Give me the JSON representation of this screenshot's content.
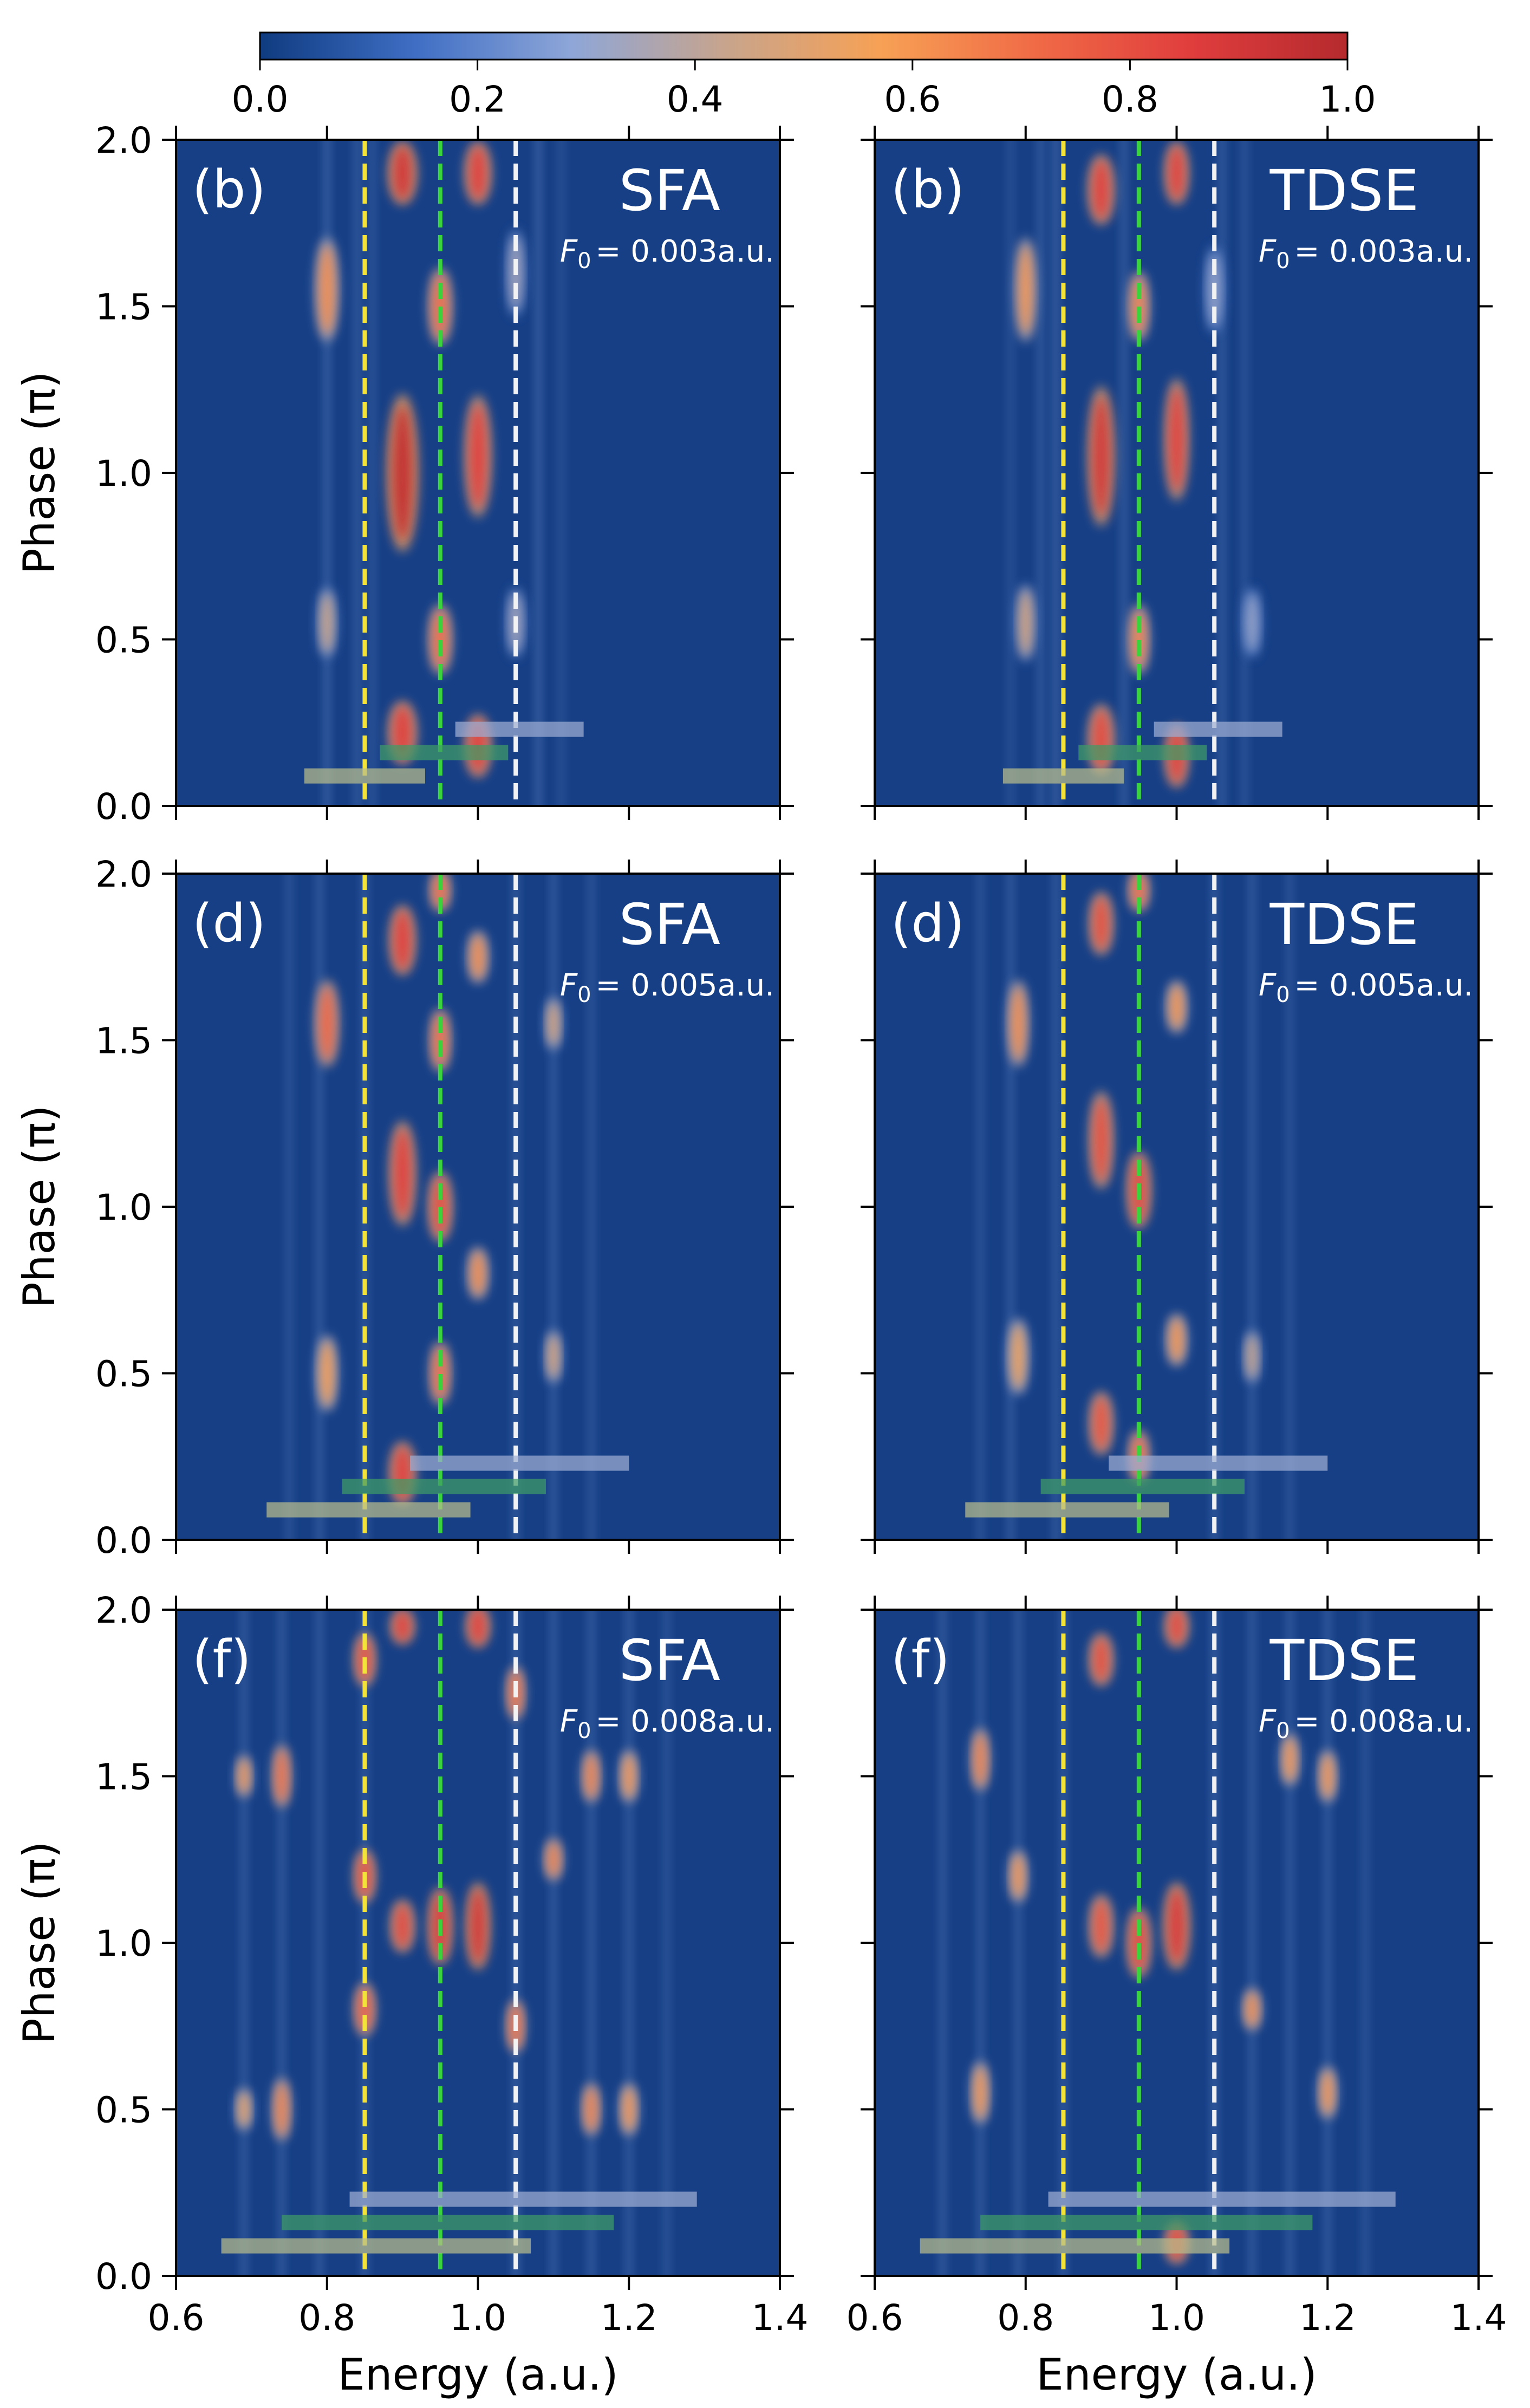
{
  "chart_data": {
    "type": "heatmap",
    "colorbar": {
      "ticks": [
        "0.0",
        "0.2",
        "0.4",
        "0.6",
        "0.8",
        "1.0"
      ],
      "range": [
        0.0,
        1.0
      ],
      "stops": [
        "#0f3b80",
        "#3f6ec4",
        "#8ea6d8",
        "#c8a48c",
        "#f7a155",
        "#f06a46",
        "#e03d3d",
        "#b52a2e"
      ]
    },
    "x_axis": {
      "label": "Energy (a.u.)",
      "range": [
        0.6,
        1.4
      ],
      "ticks": [
        "0.6",
        "0.8",
        "1.0",
        "1.2",
        "1.4"
      ]
    },
    "y_axis": {
      "label": "Phase (π)",
      "range": [
        0.0,
        2.0
      ],
      "ticks": [
        "0.0",
        "0.5",
        "1.0",
        "1.5",
        "2.0"
      ]
    },
    "reference_lines": [
      {
        "energy": 0.85,
        "color": "#f2e23a"
      },
      {
        "energy": 0.95,
        "color": "#39d43b"
      },
      {
        "energy": 1.05,
        "color": "#f2f2f2"
      }
    ],
    "panels": [
      {
        "tag": "(b)",
        "method": "SFA",
        "field_symbol": "F",
        "field_sub": "0",
        "field_value": "= 0.003a.u.",
        "background": "#163f86",
        "streaks": [
          {
            "e": 0.8,
            "i": 0.35
          },
          {
            "e": 0.84,
            "i": 0.3
          },
          {
            "e": 0.86,
            "i": 0.25
          },
          {
            "e": 1.08,
            "i": 0.35
          },
          {
            "e": 1.11,
            "i": 0.2
          }
        ],
        "blobs": [
          {
            "e": 0.8,
            "p": 1.55,
            "w": 0.01,
            "h": 0.3,
            "v": 0.62
          },
          {
            "e": 0.8,
            "p": 0.55,
            "w": 0.008,
            "h": 0.2,
            "v": 0.45
          },
          {
            "e": 0.9,
            "p": 1.0,
            "w": 0.013,
            "h": 0.45,
            "v": 0.95
          },
          {
            "e": 0.9,
            "p": 1.9,
            "w": 0.012,
            "h": 0.18,
            "v": 0.9
          },
          {
            "e": 0.9,
            "p": 0.22,
            "w": 0.012,
            "h": 0.18,
            "v": 0.85
          },
          {
            "e": 0.95,
            "p": 1.5,
            "w": 0.01,
            "h": 0.22,
            "v": 0.7
          },
          {
            "e": 0.95,
            "p": 0.5,
            "w": 0.01,
            "h": 0.2,
            "v": 0.7
          },
          {
            "e": 1.0,
            "p": 1.9,
            "w": 0.011,
            "h": 0.18,
            "v": 0.85
          },
          {
            "e": 1.0,
            "p": 1.05,
            "w": 0.011,
            "h": 0.35,
            "v": 0.85
          },
          {
            "e": 1.0,
            "p": 0.18,
            "w": 0.011,
            "h": 0.18,
            "v": 0.85
          },
          {
            "e": 1.05,
            "p": 1.6,
            "w": 0.008,
            "h": 0.25,
            "v": 0.35
          },
          {
            "e": 1.05,
            "p": 0.55,
            "w": 0.008,
            "h": 0.2,
            "v": 0.35
          }
        ],
        "bars": [
          {
            "e0": 0.77,
            "e1": 0.93,
            "p": 0.09,
            "color": "#b7bd8c"
          },
          {
            "e0": 0.87,
            "e1": 1.04,
            "p": 0.16,
            "color": "#3f9b66"
          },
          {
            "e0": 0.97,
            "e1": 1.14,
            "p": 0.23,
            "color": "#9eadd2"
          }
        ]
      },
      {
        "tag": "(b)",
        "method": "TDSE",
        "field_symbol": "F",
        "field_sub": "0",
        "field_value": "= 0.003a.u.",
        "background": "#163f86",
        "streaks": [
          {
            "e": 0.78,
            "i": 0.2
          },
          {
            "e": 0.82,
            "i": 0.3
          },
          {
            "e": 0.84,
            "i": 0.35
          },
          {
            "e": 0.93,
            "i": 0.3
          },
          {
            "e": 1.06,
            "i": 0.3
          },
          {
            "e": 1.09,
            "i": 0.25
          }
        ],
        "blobs": [
          {
            "e": 0.8,
            "p": 1.55,
            "w": 0.009,
            "h": 0.3,
            "v": 0.6
          },
          {
            "e": 0.8,
            "p": 0.55,
            "w": 0.008,
            "h": 0.22,
            "v": 0.48
          },
          {
            "e": 0.9,
            "p": 1.05,
            "w": 0.011,
            "h": 0.4,
            "v": 0.9
          },
          {
            "e": 0.9,
            "p": 1.85,
            "w": 0.011,
            "h": 0.2,
            "v": 0.85
          },
          {
            "e": 0.9,
            "p": 0.2,
            "w": 0.011,
            "h": 0.2,
            "v": 0.82
          },
          {
            "e": 0.95,
            "p": 1.5,
            "w": 0.009,
            "h": 0.2,
            "v": 0.65
          },
          {
            "e": 0.95,
            "p": 0.5,
            "w": 0.009,
            "h": 0.2,
            "v": 0.65
          },
          {
            "e": 1.0,
            "p": 1.9,
            "w": 0.01,
            "h": 0.18,
            "v": 0.85
          },
          {
            "e": 1.0,
            "p": 1.1,
            "w": 0.01,
            "h": 0.35,
            "v": 0.85
          },
          {
            "e": 1.0,
            "p": 0.15,
            "w": 0.01,
            "h": 0.18,
            "v": 0.85
          },
          {
            "e": 1.05,
            "p": 1.55,
            "w": 0.008,
            "h": 0.25,
            "v": 0.32
          },
          {
            "e": 1.1,
            "p": 0.55,
            "w": 0.008,
            "h": 0.2,
            "v": 0.32
          }
        ],
        "bars": [
          {
            "e0": 0.77,
            "e1": 0.93,
            "p": 0.09,
            "color": "#b7bd8c"
          },
          {
            "e0": 0.87,
            "e1": 1.04,
            "p": 0.16,
            "color": "#3f9b66"
          },
          {
            "e0": 0.97,
            "e1": 1.14,
            "p": 0.23,
            "color": "#9eadd2"
          }
        ]
      },
      {
        "tag": "(d)",
        "method": "SFA",
        "field_symbol": "F",
        "field_sub": "0",
        "field_value": "= 0.005a.u.",
        "background": "#163f86",
        "streaks": [
          {
            "e": 0.75,
            "i": 0.25
          },
          {
            "e": 0.79,
            "i": 0.3
          },
          {
            "e": 0.85,
            "i": 0.3
          },
          {
            "e": 1.05,
            "i": 0.3
          },
          {
            "e": 1.1,
            "i": 0.3
          },
          {
            "e": 1.15,
            "i": 0.25
          }
        ],
        "blobs": [
          {
            "e": 0.8,
            "p": 1.55,
            "w": 0.01,
            "h": 0.25,
            "v": 0.72
          },
          {
            "e": 0.8,
            "p": 0.5,
            "w": 0.009,
            "h": 0.22,
            "v": 0.58
          },
          {
            "e": 0.9,
            "p": 1.8,
            "w": 0.011,
            "h": 0.2,
            "v": 0.85
          },
          {
            "e": 0.9,
            "p": 1.1,
            "w": 0.011,
            "h": 0.3,
            "v": 0.85
          },
          {
            "e": 0.9,
            "p": 0.2,
            "w": 0.011,
            "h": 0.18,
            "v": 0.85
          },
          {
            "e": 0.95,
            "p": 1.95,
            "w": 0.009,
            "h": 0.12,
            "v": 0.7
          },
          {
            "e": 0.95,
            "p": 1.5,
            "w": 0.009,
            "h": 0.18,
            "v": 0.7
          },
          {
            "e": 0.95,
            "p": 1.0,
            "w": 0.01,
            "h": 0.2,
            "v": 0.8
          },
          {
            "e": 0.95,
            "p": 0.5,
            "w": 0.009,
            "h": 0.18,
            "v": 0.7
          },
          {
            "e": 1.0,
            "p": 1.75,
            "w": 0.009,
            "h": 0.15,
            "v": 0.62
          },
          {
            "e": 1.0,
            "p": 0.8,
            "w": 0.009,
            "h": 0.15,
            "v": 0.62
          },
          {
            "e": 1.1,
            "p": 1.55,
            "w": 0.007,
            "h": 0.15,
            "v": 0.5
          },
          {
            "e": 1.1,
            "p": 0.55,
            "w": 0.007,
            "h": 0.15,
            "v": 0.5
          }
        ],
        "bars": [
          {
            "e0": 0.72,
            "e1": 0.99,
            "p": 0.09,
            "color": "#b7bd8c"
          },
          {
            "e0": 0.82,
            "e1": 1.09,
            "p": 0.16,
            "color": "#3f9b66"
          },
          {
            "e0": 0.91,
            "e1": 1.2,
            "p": 0.23,
            "color": "#9eadd2"
          }
        ]
      },
      {
        "tag": "(d)",
        "method": "TDSE",
        "field_symbol": "F",
        "field_sub": "0",
        "field_value": "= 0.005a.u.",
        "background": "#163f86",
        "streaks": [
          {
            "e": 0.74,
            "i": 0.25
          },
          {
            "e": 0.78,
            "i": 0.3
          },
          {
            "e": 0.84,
            "i": 0.3
          },
          {
            "e": 1.05,
            "i": 0.3
          },
          {
            "e": 1.1,
            "i": 0.3
          },
          {
            "e": 1.15,
            "i": 0.25
          }
        ],
        "blobs": [
          {
            "e": 0.79,
            "p": 1.55,
            "w": 0.009,
            "h": 0.25,
            "v": 0.62
          },
          {
            "e": 0.79,
            "p": 0.55,
            "w": 0.009,
            "h": 0.22,
            "v": 0.55
          },
          {
            "e": 0.9,
            "p": 1.85,
            "w": 0.01,
            "h": 0.18,
            "v": 0.8
          },
          {
            "e": 0.9,
            "p": 1.2,
            "w": 0.01,
            "h": 0.28,
            "v": 0.8
          },
          {
            "e": 0.9,
            "p": 0.35,
            "w": 0.01,
            "h": 0.18,
            "v": 0.78
          },
          {
            "e": 0.95,
            "p": 1.95,
            "w": 0.009,
            "h": 0.12,
            "v": 0.7
          },
          {
            "e": 0.95,
            "p": 1.05,
            "w": 0.01,
            "h": 0.22,
            "v": 0.82
          },
          {
            "e": 0.95,
            "p": 0.25,
            "w": 0.009,
            "h": 0.15,
            "v": 0.7
          },
          {
            "e": 1.0,
            "p": 1.6,
            "w": 0.009,
            "h": 0.15,
            "v": 0.6
          },
          {
            "e": 1.0,
            "p": 0.6,
            "w": 0.009,
            "h": 0.15,
            "v": 0.6
          },
          {
            "e": 1.1,
            "p": 0.55,
            "w": 0.007,
            "h": 0.15,
            "v": 0.45
          }
        ],
        "bars": [
          {
            "e0": 0.72,
            "e1": 0.99,
            "p": 0.09,
            "color": "#b7bd8c"
          },
          {
            "e0": 0.82,
            "e1": 1.09,
            "p": 0.16,
            "color": "#3f9b66"
          },
          {
            "e0": 0.91,
            "e1": 1.2,
            "p": 0.23,
            "color": "#9eadd2"
          }
        ]
      },
      {
        "tag": "(f)",
        "method": "SFA",
        "field_symbol": "F",
        "field_sub": "0",
        "field_value": "= 0.008a.u.",
        "background": "#163f86",
        "streaks": [
          {
            "e": 0.69,
            "i": 0.3
          },
          {
            "e": 0.74,
            "i": 0.3
          },
          {
            "e": 0.79,
            "i": 0.3
          },
          {
            "e": 0.85,
            "i": 0.3
          },
          {
            "e": 1.05,
            "i": 0.35
          },
          {
            "e": 1.1,
            "i": 0.3
          },
          {
            "e": 1.15,
            "i": 0.3
          },
          {
            "e": 1.2,
            "i": 0.3
          },
          {
            "e": 1.25,
            "i": 0.25
          }
        ],
        "blobs": [
          {
            "e": 0.69,
            "p": 1.5,
            "w": 0.007,
            "h": 0.12,
            "v": 0.6
          },
          {
            "e": 0.69,
            "p": 0.5,
            "w": 0.007,
            "h": 0.12,
            "v": 0.55
          },
          {
            "e": 0.74,
            "p": 1.5,
            "w": 0.008,
            "h": 0.18,
            "v": 0.7
          },
          {
            "e": 0.74,
            "p": 0.5,
            "w": 0.008,
            "h": 0.18,
            "v": 0.65
          },
          {
            "e": 0.85,
            "p": 1.85,
            "w": 0.009,
            "h": 0.15,
            "v": 0.8
          },
          {
            "e": 0.85,
            "p": 1.2,
            "w": 0.009,
            "h": 0.15,
            "v": 0.8
          },
          {
            "e": 0.85,
            "p": 0.8,
            "w": 0.009,
            "h": 0.15,
            "v": 0.75
          },
          {
            "e": 0.9,
            "p": 1.95,
            "w": 0.01,
            "h": 0.1,
            "v": 0.85
          },
          {
            "e": 0.9,
            "p": 1.05,
            "w": 0.01,
            "h": 0.15,
            "v": 0.82
          },
          {
            "e": 0.95,
            "p": 1.05,
            "w": 0.01,
            "h": 0.22,
            "v": 0.88
          },
          {
            "e": 1.0,
            "p": 1.95,
            "w": 0.01,
            "h": 0.12,
            "v": 0.85
          },
          {
            "e": 1.0,
            "p": 1.05,
            "w": 0.01,
            "h": 0.25,
            "v": 0.9
          },
          {
            "e": 1.05,
            "p": 1.75,
            "w": 0.008,
            "h": 0.15,
            "v": 0.7
          },
          {
            "e": 1.05,
            "p": 0.75,
            "w": 0.008,
            "h": 0.15,
            "v": 0.7
          },
          {
            "e": 1.1,
            "p": 1.25,
            "w": 0.008,
            "h": 0.12,
            "v": 0.65
          },
          {
            "e": 1.15,
            "p": 1.5,
            "w": 0.008,
            "h": 0.15,
            "v": 0.65
          },
          {
            "e": 1.15,
            "p": 0.5,
            "w": 0.008,
            "h": 0.15,
            "v": 0.65
          },
          {
            "e": 1.2,
            "p": 1.5,
            "w": 0.008,
            "h": 0.15,
            "v": 0.6
          },
          {
            "e": 1.2,
            "p": 0.5,
            "w": 0.008,
            "h": 0.15,
            "v": 0.6
          }
        ],
        "bars": [
          {
            "e0": 0.66,
            "e1": 1.07,
            "p": 0.09,
            "color": "#b7bd8c"
          },
          {
            "e0": 0.74,
            "e1": 1.18,
            "p": 0.16,
            "color": "#3f9b66"
          },
          {
            "e0": 0.83,
            "e1": 1.29,
            "p": 0.23,
            "color": "#9eadd2"
          }
        ]
      },
      {
        "tag": "(f)",
        "method": "TDSE",
        "field_symbol": "F",
        "field_sub": "0",
        "field_value": "= 0.008a.u.",
        "background": "#163f86",
        "streaks": [
          {
            "e": 0.69,
            "i": 0.3
          },
          {
            "e": 0.74,
            "i": 0.3
          },
          {
            "e": 0.79,
            "i": 0.3
          },
          {
            "e": 0.85,
            "i": 0.3
          },
          {
            "e": 1.05,
            "i": 0.35
          },
          {
            "e": 1.1,
            "i": 0.3
          },
          {
            "e": 1.15,
            "i": 0.3
          },
          {
            "e": 1.2,
            "i": 0.3
          },
          {
            "e": 1.25,
            "i": 0.25
          }
        ],
        "blobs": [
          {
            "e": 0.74,
            "p": 1.55,
            "w": 0.008,
            "h": 0.18,
            "v": 0.65
          },
          {
            "e": 0.74,
            "p": 0.55,
            "w": 0.008,
            "h": 0.18,
            "v": 0.6
          },
          {
            "e": 0.79,
            "p": 1.2,
            "w": 0.008,
            "h": 0.15,
            "v": 0.6
          },
          {
            "e": 0.9,
            "p": 1.85,
            "w": 0.01,
            "h": 0.15,
            "v": 0.8
          },
          {
            "e": 0.9,
            "p": 1.05,
            "w": 0.01,
            "h": 0.18,
            "v": 0.78
          },
          {
            "e": 0.95,
            "p": 1.0,
            "w": 0.01,
            "h": 0.2,
            "v": 0.82
          },
          {
            "e": 1.0,
            "p": 1.95,
            "w": 0.01,
            "h": 0.12,
            "v": 0.82
          },
          {
            "e": 1.0,
            "p": 1.05,
            "w": 0.011,
            "h": 0.25,
            "v": 0.88
          },
          {
            "e": 1.0,
            "p": 0.1,
            "w": 0.01,
            "h": 0.12,
            "v": 0.82
          },
          {
            "e": 1.1,
            "p": 0.8,
            "w": 0.008,
            "h": 0.12,
            "v": 0.62
          },
          {
            "e": 1.15,
            "p": 1.55,
            "w": 0.008,
            "h": 0.15,
            "v": 0.6
          },
          {
            "e": 1.2,
            "p": 1.5,
            "w": 0.008,
            "h": 0.15,
            "v": 0.6
          },
          {
            "e": 1.2,
            "p": 0.55,
            "w": 0.008,
            "h": 0.15,
            "v": 0.6
          }
        ],
        "bars": [
          {
            "e0": 0.66,
            "e1": 1.07,
            "p": 0.09,
            "color": "#b7bd8c"
          },
          {
            "e0": 0.74,
            "e1": 1.18,
            "p": 0.16,
            "color": "#3f9b66"
          },
          {
            "e0": 0.83,
            "e1": 1.29,
            "p": 0.23,
            "color": "#9eadd2"
          }
        ]
      }
    ]
  }
}
